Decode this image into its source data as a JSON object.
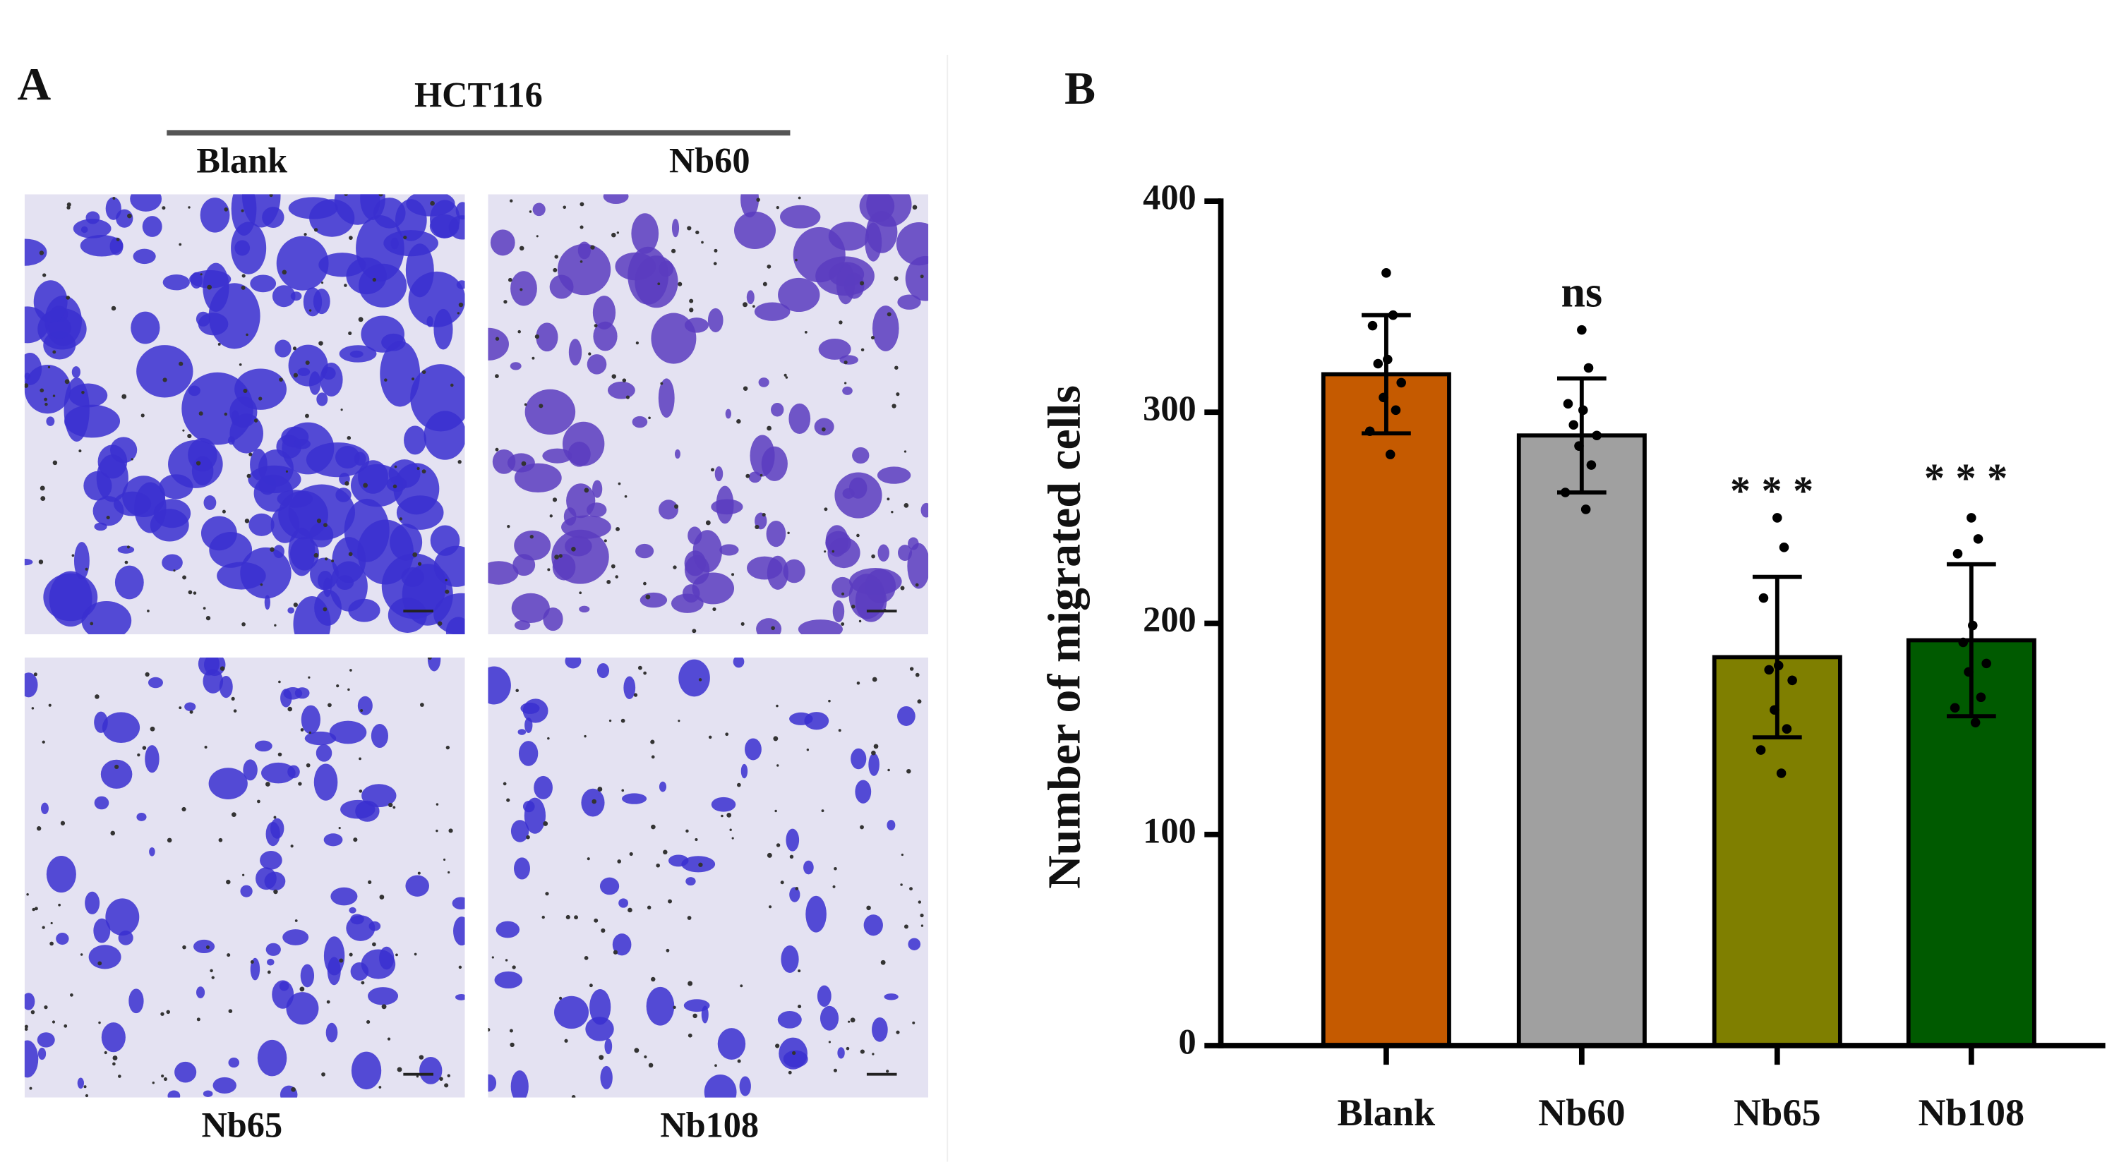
{
  "panel_a": {
    "label": "A",
    "title": "HCT116",
    "images": [
      "Blank",
      "Nb60",
      "Nb65",
      "Nb108"
    ]
  },
  "chart_data": {
    "type": "bar",
    "panel_label": "B",
    "ylabel": "Number of migrated cells",
    "categories": [
      "Blank",
      "Nb60",
      "Nb65",
      "Nb108"
    ],
    "values": [
      318,
      289,
      184,
      192
    ],
    "errors": [
      28,
      27,
      38,
      36
    ],
    "colors": [
      "#c55a00",
      "#a0a0a0",
      "#7f7f00",
      "#005a00"
    ],
    "annotations": [
      null,
      "ns",
      "***",
      "***"
    ],
    "points": [
      [
        366,
        346,
        341,
        325,
        323,
        314,
        307,
        301,
        291,
        280
      ],
      [
        339,
        321,
        304,
        301,
        294,
        289,
        284,
        275,
        262,
        254
      ],
      [
        250,
        236,
        212,
        180,
        178,
        173,
        159,
        150,
        140,
        129
      ],
      [
        250,
        240,
        233,
        199,
        191,
        181,
        177,
        165,
        160,
        153
      ]
    ],
    "ylim": [
      0,
      400
    ],
    "yticks": [
      0,
      100,
      200,
      300,
      400
    ]
  }
}
